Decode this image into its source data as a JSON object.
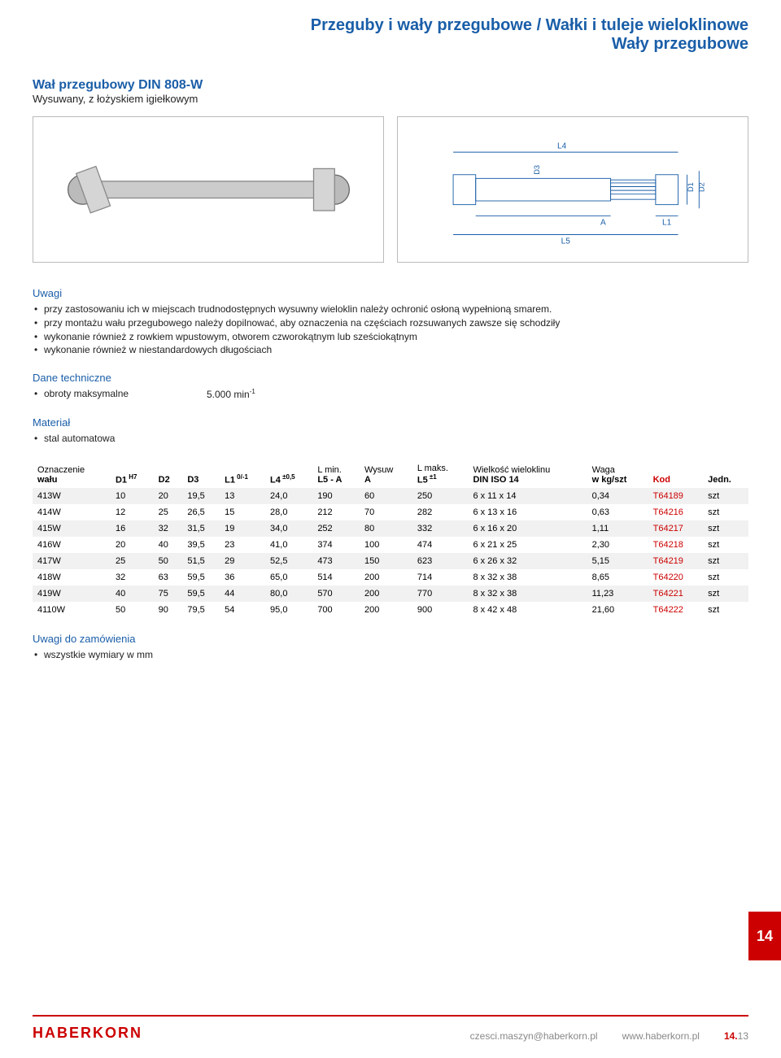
{
  "header": {
    "line1": "Przeguby i wały przegubowe / Wałki i tuleje wieloklinowe",
    "line2": "Wały przegubowe"
  },
  "product": {
    "title": "Wał przegubowy DIN 808-W",
    "subtitle": "Wysuwany, z łożyskiem igiełkowym"
  },
  "diagram_labels": {
    "L4": "L4",
    "L5": "L5",
    "L1": "L1",
    "A": "A",
    "D1": "D1",
    "D2": "D2",
    "D3": "D3"
  },
  "notes": {
    "title": "Uwagi",
    "items": [
      "przy zastosowaniu ich w miejscach trudnodostępnych wysuwny wieloklin należy ochronić osłoną wypełnioną smarem.",
      "przy montażu wału przegubowego należy dopilnować, aby oznaczenia na częściach rozsuwanych zawsze się schodziły",
      "wykonanie również z rowkiem wpustowym, otworem czworokątnym lub sześciokątnym",
      "wykonanie również w niestandardowych długościach"
    ]
  },
  "tech": {
    "title": "Dane techniczne",
    "rpm_label": "obroty maksymalne",
    "rpm_value": "5.000 min",
    "rpm_exp": "-1"
  },
  "material": {
    "title": "Materiał",
    "item": "stal automatowa"
  },
  "table": {
    "headers": [
      {
        "top": "Oznaczenie",
        "bot": "wału"
      },
      {
        "top": "",
        "bot": "D1",
        "sup": "H7"
      },
      {
        "top": "",
        "bot": "D2"
      },
      {
        "top": "",
        "bot": "D3"
      },
      {
        "top": "",
        "bot": "L1",
        "sup": "0/-1"
      },
      {
        "top": "",
        "bot": "L4",
        "sup": "±0,5"
      },
      {
        "top": "L min.",
        "bot": "L5 - A"
      },
      {
        "top": "Wysuw",
        "bot": "A"
      },
      {
        "top": "L maks.",
        "bot": "L5",
        "sup": "±1"
      },
      {
        "top": "Wielkość wieloklinu",
        "bot": "DIN ISO 14"
      },
      {
        "top": "Waga",
        "bot": "w kg/szt"
      },
      {
        "top": "",
        "bot": "Kod"
      },
      {
        "top": "",
        "bot": "Jedn."
      }
    ],
    "rows": [
      [
        "413W",
        "10",
        "20",
        "19,5",
        "13",
        "24,0",
        "190",
        "60",
        "250",
        "6 x 11 x 14",
        "0,34",
        "T64189",
        "szt"
      ],
      [
        "414W",
        "12",
        "25",
        "26,5",
        "15",
        "28,0",
        "212",
        "70",
        "282",
        "6 x 13 x 16",
        "0,63",
        "T64216",
        "szt"
      ],
      [
        "415W",
        "16",
        "32",
        "31,5",
        "19",
        "34,0",
        "252",
        "80",
        "332",
        "6 x 16 x 20",
        "1,11",
        "T64217",
        "szt"
      ],
      [
        "416W",
        "20",
        "40",
        "39,5",
        "23",
        "41,0",
        "374",
        "100",
        "474",
        "6 x 21 x 25",
        "2,30",
        "T64218",
        "szt"
      ],
      [
        "417W",
        "25",
        "50",
        "51,5",
        "29",
        "52,5",
        "473",
        "150",
        "623",
        "6 x 26 x 32",
        "5,15",
        "T64219",
        "szt"
      ],
      [
        "418W",
        "32",
        "63",
        "59,5",
        "36",
        "65,0",
        "514",
        "200",
        "714",
        "8 x 32 x 38",
        "8,65",
        "T64220",
        "szt"
      ],
      [
        "419W",
        "40",
        "75",
        "59,5",
        "44",
        "80,0",
        "570",
        "200",
        "770",
        "8 x 32 x 38",
        "11,23",
        "T64221",
        "szt"
      ],
      [
        "4110W",
        "50",
        "90",
        "79,5",
        "54",
        "95,0",
        "700",
        "200",
        "900",
        "8 x 42 x 48",
        "21,60",
        "T64222",
        "szt"
      ]
    ]
  },
  "order_notes": {
    "title": "Uwagi do zamówienia",
    "item": "wszystkie wymiary w mm"
  },
  "side_tab": "14",
  "footer": {
    "logo": "HABERKORN",
    "email": "czesci.maszyn@haberkorn.pl",
    "web": "www.haberkorn.pl",
    "page_prefix": "14.",
    "page_num": "13"
  },
  "colors": {
    "heading": "#1a5ea8",
    "accent": "#c00",
    "row_alt": "#f1f1f1"
  }
}
